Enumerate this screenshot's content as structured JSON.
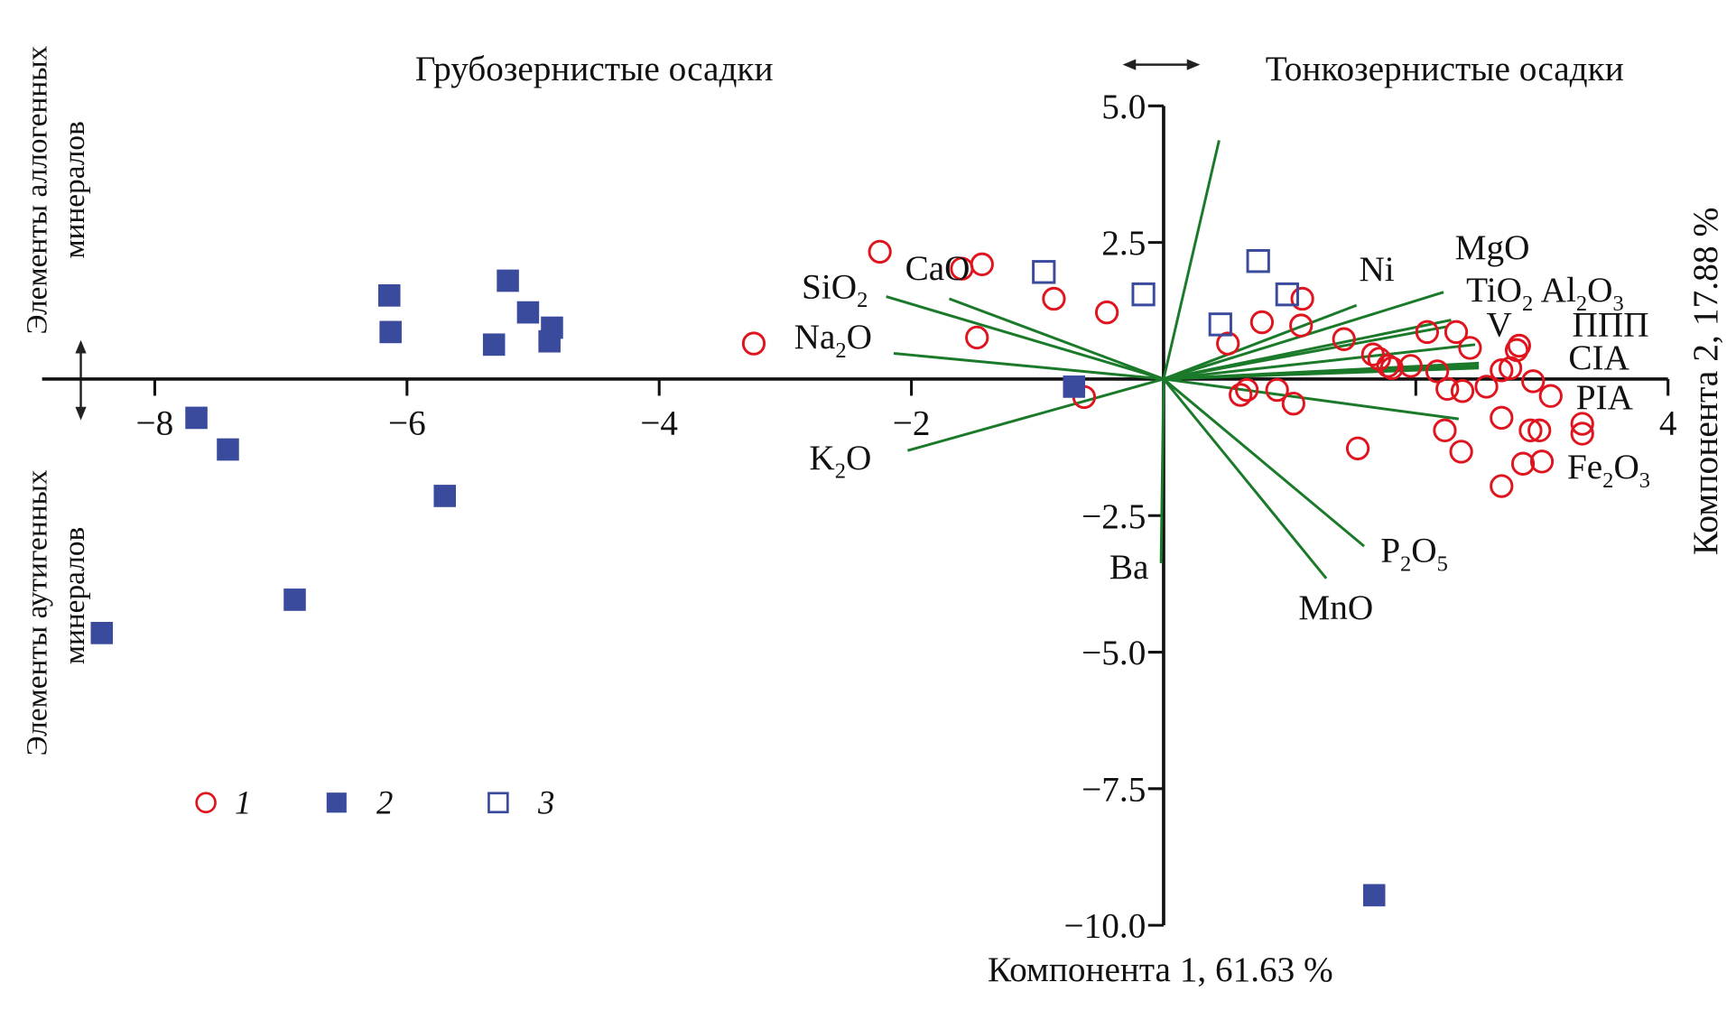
{
  "chart_data": {
    "type": "scatter",
    "subtype": "pca-biplot",
    "xlabel": "Компонента 1, 61.63 %",
    "ylabel": "Компонента 2, 17.88 %",
    "xlim": [
      -8.6,
      4.0
    ],
    "ylim": [
      -10.0,
      5.0
    ],
    "x_ticks": [
      -8,
      -6,
      -4,
      -2,
      2,
      4
    ],
    "x_tick_labels": [
      "−8",
      "−6",
      "−4",
      "−2",
      "",
      "4"
    ],
    "y_ticks": [
      5.0,
      2.5,
      -2.5,
      -5.0,
      -7.5,
      -10.0
    ],
    "y_tick_labels": [
      "5.0",
      "2.5",
      "−2.5",
      "−5.0",
      "−7.5",
      "−10.0"
    ],
    "annotations": {
      "top_left": "Грубозернистые осадки",
      "top_right": "Тонкозернистые осадки",
      "left_upper": [
        "Элементы аллогенных",
        "минералов"
      ],
      "left_lower": [
        "Элементы аутигенных",
        "минералов"
      ]
    },
    "legend": {
      "placement": "bottom-left",
      "entries": [
        {
          "label": "1",
          "marker": "open-circle",
          "color": "#e0141e"
        },
        {
          "label": "2",
          "marker": "filled-square",
          "color": "#3a4a9c"
        },
        {
          "label": "3",
          "marker": "open-square",
          "color": "#3a4a9c"
        }
      ]
    },
    "series": [
      {
        "name": "1",
        "marker": "open-circle",
        "color": "#e0141e",
        "points": [
          [
            -2.25,
            2.33
          ],
          [
            -1.6,
            2.02
          ],
          [
            -1.44,
            2.1
          ],
          [
            -3.25,
            0.65
          ],
          [
            -1.48,
            0.76
          ],
          [
            -0.87,
            1.47
          ],
          [
            -0.45,
            1.22
          ],
          [
            -0.63,
            -0.33
          ],
          [
            0.51,
            0.65
          ],
          [
            0.78,
            1.04
          ],
          [
            1.1,
            1.47
          ],
          [
            1.09,
            0.98
          ],
          [
            1.43,
            0.73
          ],
          [
            1.66,
            0.45
          ],
          [
            1.71,
            0.37
          ],
          [
            1.78,
            0.24
          ],
          [
            1.81,
            0.2
          ],
          [
            1.96,
            0.24
          ],
          [
            2.09,
            0.86
          ],
          [
            2.32,
            0.86
          ],
          [
            2.17,
            0.14
          ],
          [
            2.43,
            0.57
          ],
          [
            2.25,
            -0.18
          ],
          [
            2.37,
            -0.22
          ],
          [
            2.56,
            -0.14
          ],
          [
            2.68,
            0.16
          ],
          [
            2.75,
            0.2
          ],
          [
            2.8,
            0.53
          ],
          [
            2.82,
            0.61
          ],
          [
            2.93,
            -0.04
          ],
          [
            3.07,
            -0.31
          ],
          [
            2.68,
            -0.71
          ],
          [
            2.91,
            -0.94
          ],
          [
            2.98,
            -0.94
          ],
          [
            3.32,
            -0.82
          ],
          [
            3.32,
            -1.0
          ],
          [
            2.23,
            -0.94
          ],
          [
            2.36,
            -1.33
          ],
          [
            3.0,
            -1.51
          ],
          [
            2.85,
            -1.55
          ],
          [
            2.68,
            -1.96
          ],
          [
            1.54,
            -1.27
          ],
          [
            0.61,
            -0.29
          ],
          [
            0.66,
            -0.2
          ],
          [
            0.9,
            -0.2
          ],
          [
            1.03,
            -0.45
          ]
        ]
      },
      {
        "name": "2",
        "marker": "filled-square",
        "color": "#3a4a9c",
        "points": [
          [
            -6.14,
            1.53
          ],
          [
            -6.13,
            0.86
          ],
          [
            -5.2,
            1.8
          ],
          [
            -5.04,
            1.22
          ],
          [
            -4.85,
            0.94
          ],
          [
            -4.87,
            0.69
          ],
          [
            -5.31,
            0.63
          ],
          [
            -7.67,
            -0.71
          ],
          [
            -7.42,
            -1.29
          ],
          [
            -5.7,
            -2.14
          ],
          [
            -6.89,
            -4.04
          ],
          [
            -8.42,
            -4.65
          ],
          [
            -0.71,
            -0.14
          ],
          [
            1.67,
            -9.45
          ]
        ]
      },
      {
        "name": "3",
        "marker": "open-square",
        "color": "#3a4a9c",
        "points": [
          [
            -0.95,
            1.96
          ],
          [
            -0.16,
            1.55
          ],
          [
            0.75,
            2.16
          ],
          [
            0.98,
            1.55
          ],
          [
            0.45,
            1.0
          ]
        ]
      }
    ],
    "vectors": [
      {
        "label": "SiO2",
        "x": -2.2,
        "y": 1.51
      },
      {
        "label": "CaO",
        "x": -1.7,
        "y": 1.47
      },
      {
        "label": "Na2O",
        "x": -2.14,
        "y": 0.47
      },
      {
        "label": "K2O",
        "x": -2.03,
        "y": -1.31
      },
      {
        "label": "",
        "x": 0.44,
        "y": 4.37
      },
      {
        "label": "Ba",
        "x": -0.02,
        "y": -3.37
      },
      {
        "label": "MnO",
        "x": 1.29,
        "y": -3.65
      },
      {
        "label": "P2O5",
        "x": 1.59,
        "y": -3.06
      },
      {
        "label": "Ni",
        "x": 1.53,
        "y": 1.35
      },
      {
        "label": "MgO",
        "x": 2.22,
        "y": 1.59
      },
      {
        "label": "TiO2",
        "x": 2.28,
        "y": 1.08
      },
      {
        "label": "Al2O3",
        "x": 2.25,
        "y": 0.96
      },
      {
        "label": "V",
        "x": 2.47,
        "y": 0.63
      },
      {
        "label": "ППП",
        "x": 2.5,
        "y": 0.29
      },
      {
        "label": "CIA",
        "x": 2.5,
        "y": 0.2
      },
      {
        "label": "Fe2O3",
        "x": 2.34,
        "y": -0.73
      },
      {
        "label": "PIA",
        "x": 2.5,
        "y": 0.24
      }
    ],
    "vector_color": "#1a7a2a",
    "vector_labels": [
      {
        "text": "SiO",
        "sub": "2",
        "x": -2.87,
        "y": 1.48
      },
      {
        "text": "CaO",
        "x": -2.05,
        "y": 1.82
      },
      {
        "text": "Na",
        "sub": "2",
        "tail": "O",
        "x": -2.93,
        "y": 0.56
      },
      {
        "text": "K",
        "sub": "2",
        "tail": "O",
        "x": -2.81,
        "y": -1.65
      },
      {
        "text": "Ba",
        "x": -0.43,
        "y": -3.65
      },
      {
        "text": "MnO",
        "x": 1.07,
        "y": -4.4
      },
      {
        "text": "P",
        "sub": "2",
        "tail": "O",
        "sub2": "5",
        "x": 1.72,
        "y": -3.35
      },
      {
        "text": "Ni",
        "x": 1.55,
        "y": 1.8
      },
      {
        "text": "MgO",
        "x": 2.31,
        "y": 2.2
      },
      {
        "text": "TiO",
        "sub": "2",
        "x": 2.4,
        "y": 1.42
      },
      {
        "text": "Al",
        "sub": "2",
        "tail": "O",
        "sub2": "3",
        "x": 2.99,
        "y": 1.42
      },
      {
        "text": "V",
        "x": 2.56,
        "y": 0.78
      },
      {
        "text": "ППП",
        "x": 3.24,
        "y": 0.78
      },
      {
        "text": "CIA",
        "x": 3.21,
        "y": 0.18
      },
      {
        "text": "PIA",
        "x": 3.27,
        "y": -0.55
      },
      {
        "text": "Fe",
        "sub": "2",
        "tail": "O",
        "sub2": "3",
        "x": 3.2,
        "y": -1.82
      }
    ]
  }
}
